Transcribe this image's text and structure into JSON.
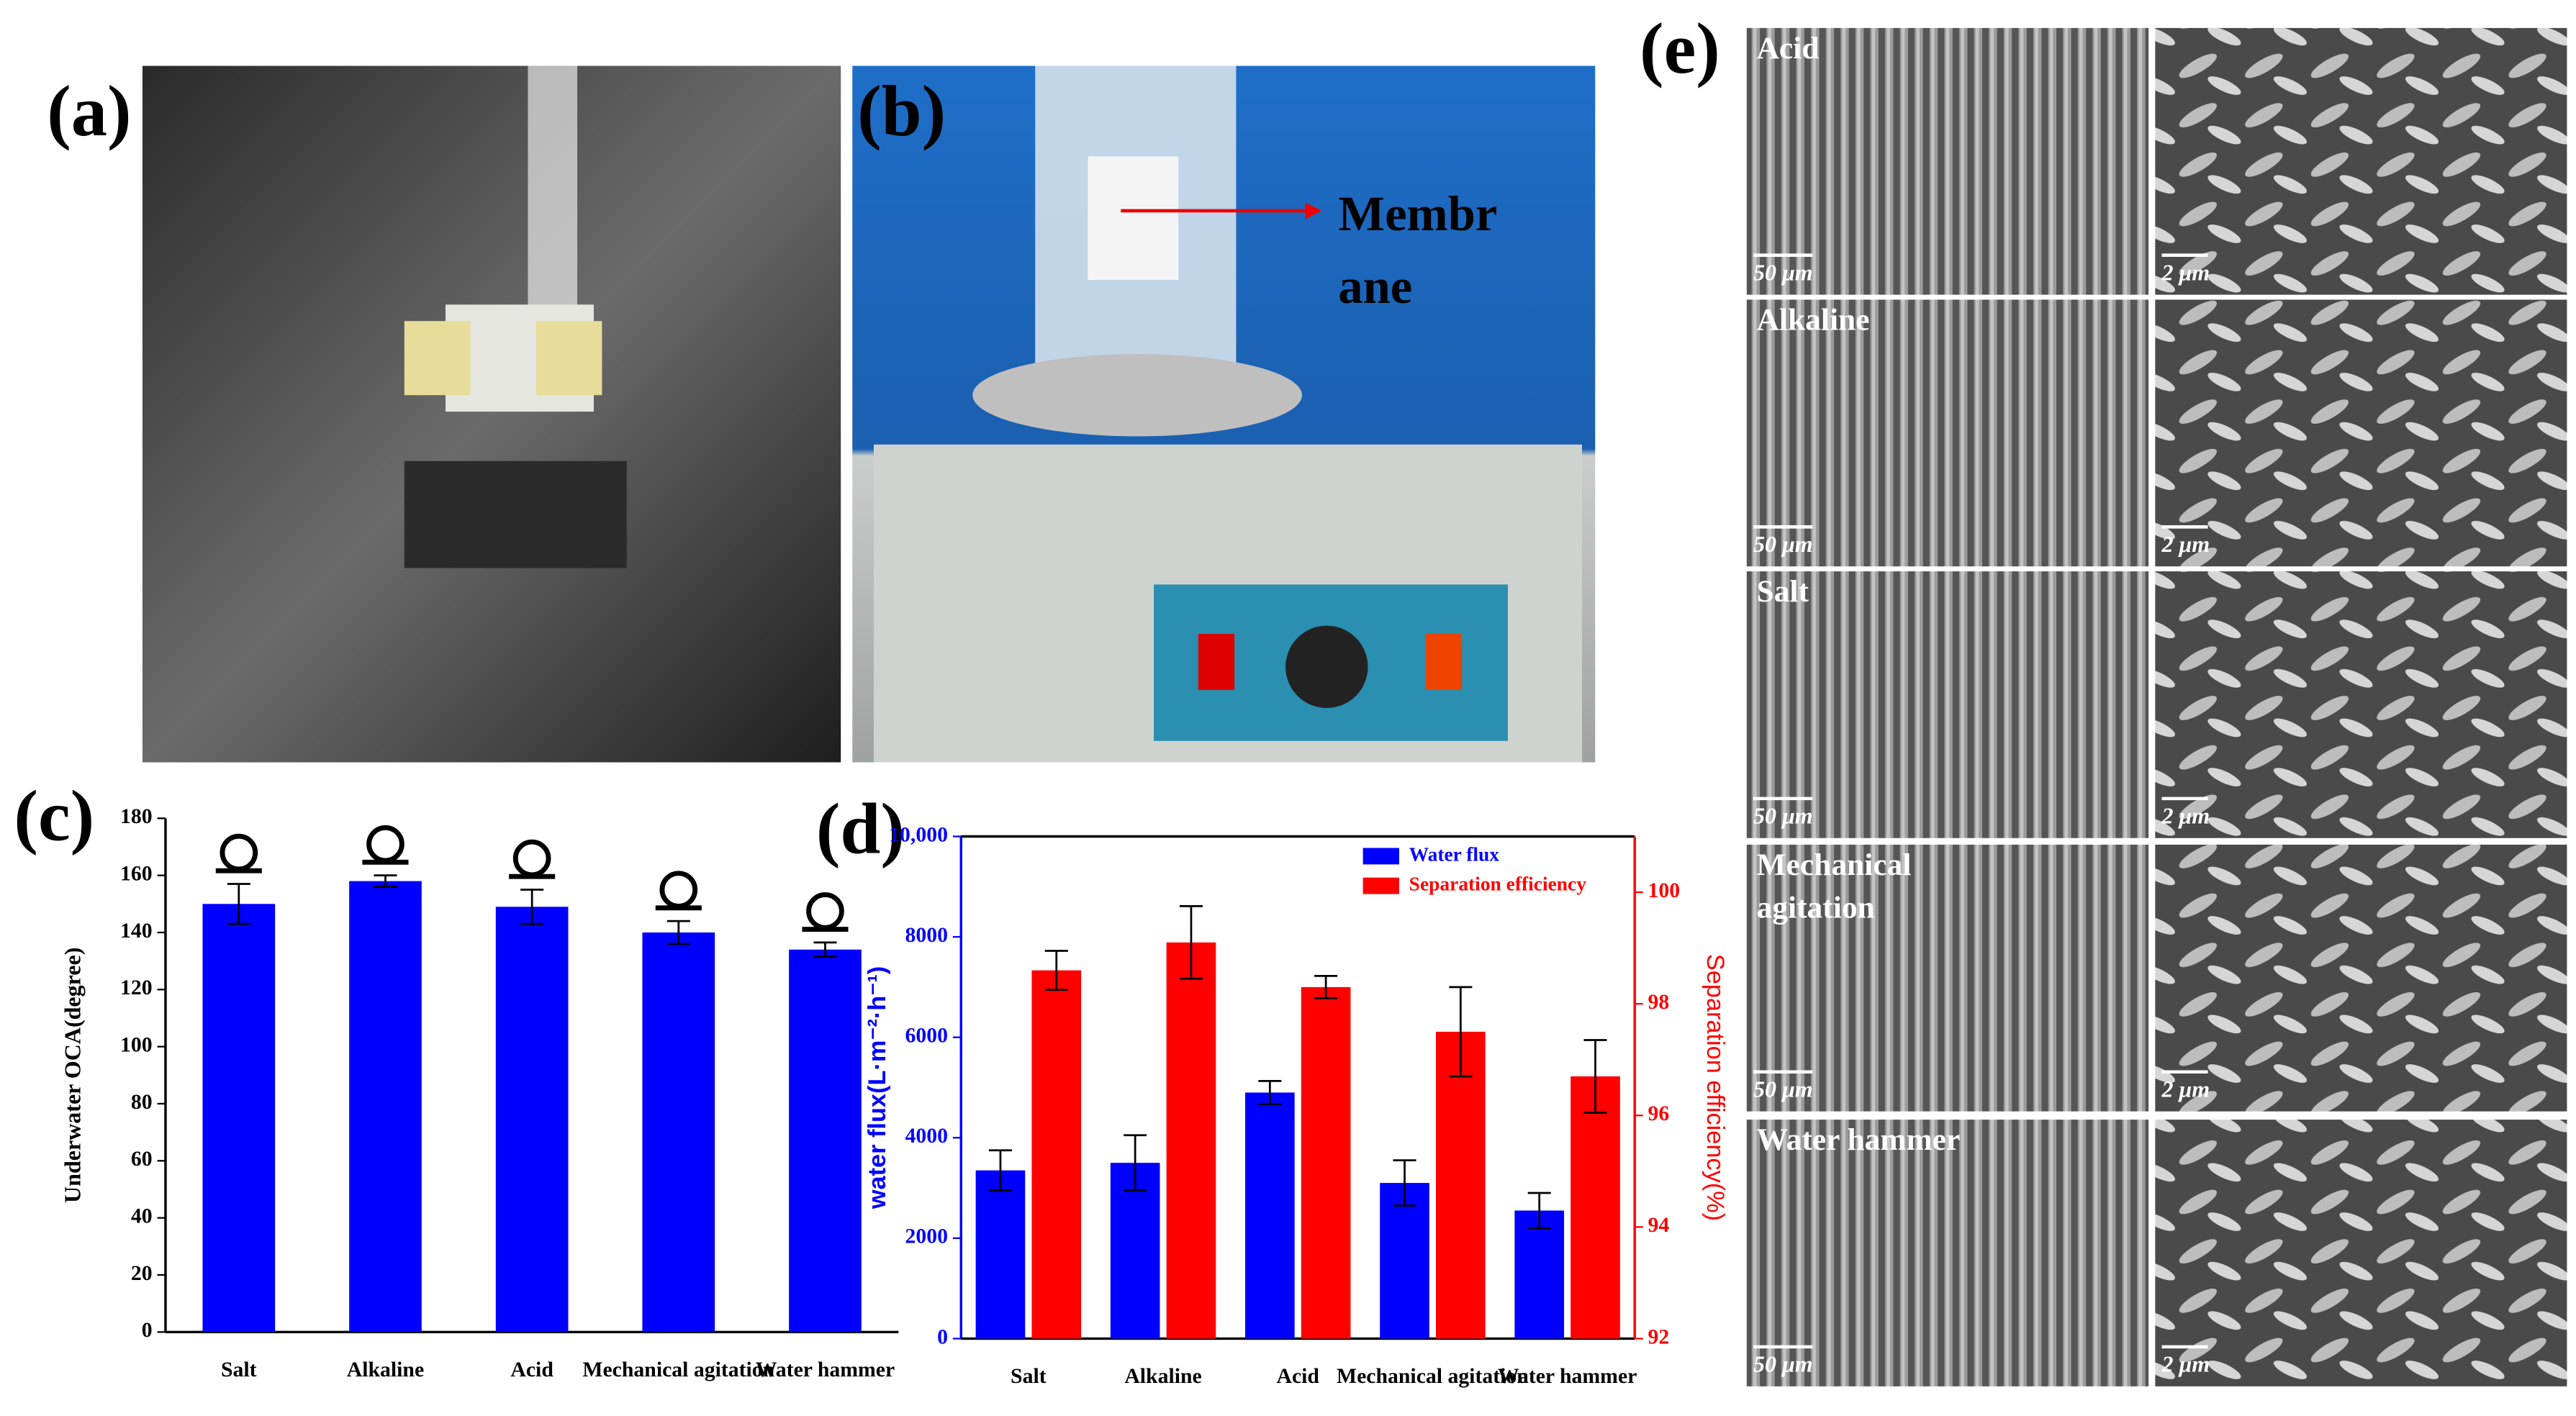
{
  "panel_labels": [
    "(a)",
    "(b)",
    "(c)",
    "(d)",
    "(e)"
  ],
  "photo_b_annotation": [
    "Membr",
    "ane"
  ],
  "sem_rows": [
    {
      "label": [
        "Acid"
      ],
      "scale_left": "50 μm",
      "scale_right": "2 μm"
    },
    {
      "label": [
        "Alkaline"
      ],
      "scale_left": "50 μm",
      "scale_right": "2 μm"
    },
    {
      "label": [
        "Salt"
      ],
      "scale_left": "50 μm",
      "scale_right": "2 μm"
    },
    {
      "label": [
        "Mechanical",
        "agitation"
      ],
      "scale_left": "50 μm",
      "scale_right": "2 μm"
    },
    {
      "label": [
        "Water hammer"
      ],
      "scale_left": "50 μm",
      "scale_right": "2 μm"
    }
  ],
  "chart_data": [
    {
      "type": "bar",
      "y_label": "Underwater OCA(degree)",
      "categories": [
        "Salt",
        "Alkaline",
        "Acid",
        "Mechanical agitation",
        "Water hammer"
      ],
      "series": [
        {
          "color": "#0000ff",
          "values": [
            150,
            158,
            149,
            140,
            134
          ],
          "errors": [
            7,
            2,
            6,
            4,
            2.5
          ]
        }
      ],
      "ylim": [
        0,
        180
      ],
      "yticks": [
        0,
        20,
        40,
        60,
        80,
        100,
        120,
        140,
        160,
        180
      ]
    },
    {
      "type": "bar",
      "y_label": "water flux(L·m⁻²·h⁻¹)",
      "y2_label": "Separation efficiency(%)",
      "categories": [
        "Salt",
        "Alkaline",
        "Acid",
        "Mechanical agitation",
        "Water hammer"
      ],
      "series": [
        {
          "name": "Water flux",
          "color": "#0000ff",
          "values": [
            3350,
            3500,
            4900,
            3100,
            2550
          ],
          "errors": [
            400,
            550,
            230,
            450,
            350
          ]
        },
        {
          "name": "Separation efficiency",
          "color": "#ff0000",
          "axis": "y2",
          "values": [
            98.6,
            99.1,
            98.3,
            97.5,
            96.7
          ],
          "errors": [
            0.35,
            0.65,
            0.2,
            0.8,
            0.65
          ]
        }
      ],
      "ylim": [
        0,
        10000
      ],
      "yticks": [
        0,
        2000,
        4000,
        6000,
        8000,
        {
          "value": 10000,
          "label": "10,000"
        }
      ],
      "y2lim": [
        92,
        101
      ],
      "y2ticks": [
        92,
        94,
        96,
        98,
        100
      ],
      "legend": "upper right"
    }
  ]
}
